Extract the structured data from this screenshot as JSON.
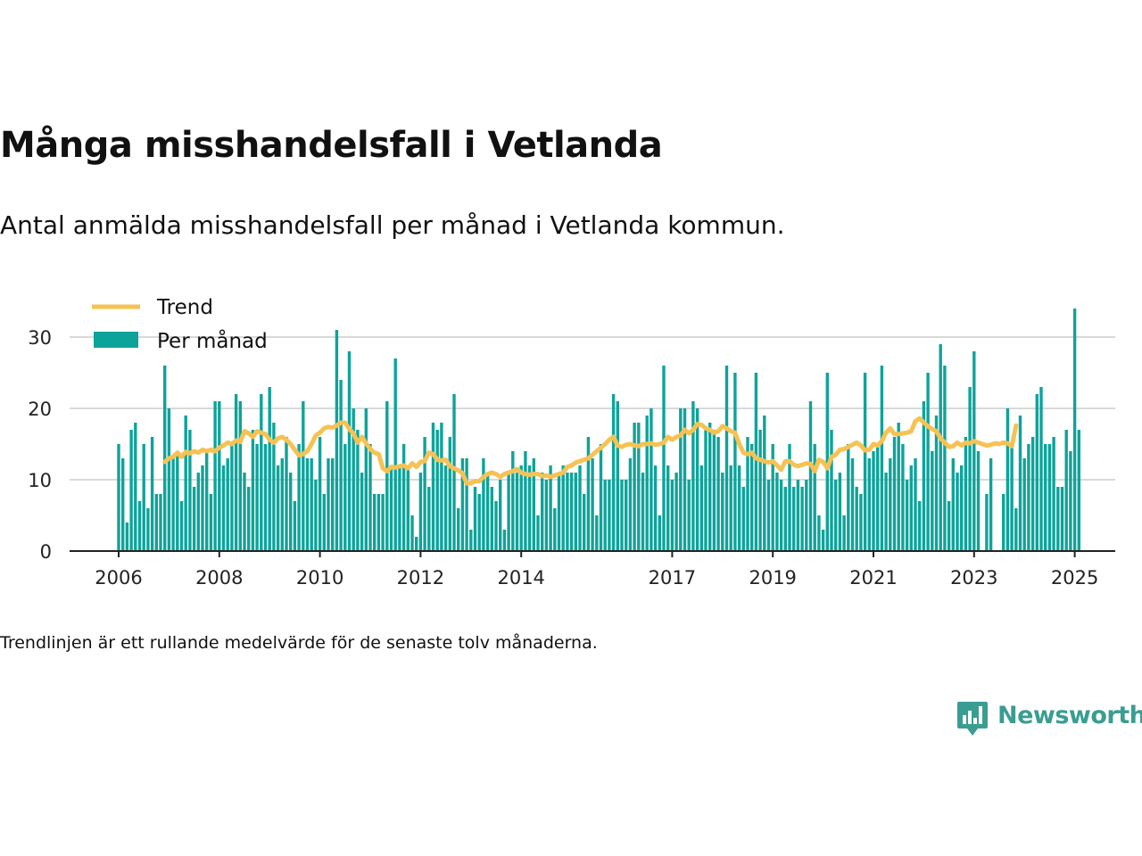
{
  "title": "Många misshandelsfall i Vetlanda",
  "subtitle": "Antal anmälda misshandelsfall per månad i Vetlanda kommun.",
  "footnote": "Trendlinjen är ett rullande medelvärde för de senaste tolv månaderna.",
  "logo": {
    "text": "Newsworthy",
    "icon": "newsworthy-chart-icon"
  },
  "colors": {
    "bars": "#0ea39a",
    "trend": "#f6c254",
    "grid": "#d9d9d9",
    "axis": "#222222"
  },
  "chart_data": {
    "type": "bar",
    "x_start": "2006-01",
    "x_end": "2025-06",
    "ylim": [
      0,
      35
    ],
    "yticks": [
      0,
      10,
      20,
      30
    ],
    "xticks": [
      "2006",
      "2008",
      "2010",
      "2012",
      "2014",
      "2017",
      "2019",
      "2021",
      "2023",
      "2025"
    ],
    "legend": {
      "placement": "top-left",
      "items": [
        "Trend",
        "Per månad"
      ]
    },
    "grid": true,
    "series": [
      {
        "name": "Per månad",
        "type": "bar",
        "values": [
          15,
          13,
          4,
          17,
          18,
          7,
          15,
          6,
          16,
          8,
          8,
          26,
          20,
          13,
          14,
          7,
          19,
          17,
          9,
          11,
          12,
          14,
          8,
          21,
          21,
          12,
          13,
          15,
          22,
          21,
          11,
          9,
          17,
          15,
          22,
          15,
          23,
          18,
          12,
          13,
          16,
          11,
          7,
          15,
          21,
          13,
          13,
          10,
          16,
          8,
          13,
          13,
          31,
          24,
          15,
          28,
          20,
          17,
          11,
          20,
          15,
          8,
          8,
          8,
          21,
          12,
          27,
          12,
          15,
          12,
          5,
          2,
          11,
          16,
          9,
          18,
          17,
          18,
          12,
          16,
          22,
          6,
          13,
          13,
          3,
          9,
          8,
          13,
          11,
          9,
          7,
          10,
          3,
          11,
          14,
          11,
          12,
          14,
          12,
          13,
          5,
          11,
          10,
          12,
          6,
          11,
          12,
          11,
          11,
          11,
          12,
          8,
          16,
          13,
          5,
          15,
          10,
          10,
          22,
          21,
          10,
          10,
          13,
          18,
          18,
          11,
          19,
          20,
          12,
          5,
          26,
          12,
          10,
          11,
          20,
          20,
          10,
          21,
          20,
          12,
          17,
          18,
          17,
          16,
          11,
          26,
          12,
          25,
          12,
          9,
          16,
          15,
          25,
          17,
          19,
          10,
          15,
          11,
          10,
          9,
          15,
          9,
          10,
          9,
          10,
          21,
          15,
          5,
          3,
          25,
          17,
          10,
          11,
          5,
          15,
          13,
          9,
          8,
          25,
          13,
          14,
          15,
          26,
          11,
          13,
          16,
          18,
          15,
          10,
          12,
          13,
          7,
          21,
          25,
          14,
          19,
          29,
          26,
          7,
          13,
          11,
          12,
          16,
          23,
          28,
          14,
          0,
          8,
          13,
          0,
          0,
          8,
          20,
          15,
          6,
          19,
          13,
          15,
          16,
          22,
          23,
          15,
          15,
          16,
          9,
          9,
          17,
          14,
          34,
          17
        ]
      },
      {
        "name": "Trend",
        "type": "line",
        "start": "2006-12",
        "values": [
          12.5,
          13,
          13.2,
          13.8,
          13.2,
          13.9,
          13.7,
          14,
          13.8,
          14.2,
          14,
          14.2,
          14,
          14.5,
          14.8,
          15.2,
          15,
          15.5,
          15.3,
          16.8,
          16.5,
          16,
          16.8,
          16.6,
          16.4,
          15.6,
          15.2,
          15.8,
          16,
          15.6,
          15,
          14.2,
          13.4,
          13.6,
          14,
          15,
          16.2,
          16.6,
          17.2,
          17.4,
          17.3,
          17.6,
          18,
          18,
          17.1,
          16.5,
          15.2,
          16,
          15.1,
          14.3,
          13.8,
          13.6,
          11.6,
          11.2,
          11.8,
          11.7,
          11.9,
          12,
          11.6,
          12.3,
          11.8,
          12.5,
          12.6,
          13.8,
          13.6,
          12.8,
          12.7,
          12.8,
          11.9,
          11.6,
          11.3,
          10.9,
          9.5,
          9.5,
          9.8,
          9.8,
          10.4,
          10.8,
          11,
          10.8,
          10.4,
          10.8,
          11,
          11.2,
          11.5,
          11,
          10.8,
          10.7,
          10.8,
          10.8,
          10.5,
          10.6,
          10.4,
          10.6,
          10.8,
          11,
          11.8,
          12,
          12.4,
          12.6,
          12.8,
          13,
          13.5,
          14,
          14.5,
          15,
          15.6,
          16,
          14.8,
          14.6,
          14.9,
          15,
          14.8,
          14.7,
          15,
          15,
          15.1,
          14.9,
          15,
          15.2,
          16,
          15.6,
          16,
          16.2,
          17,
          16.5,
          17,
          17.8,
          17.7,
          17.2,
          17,
          16.6,
          16.8,
          17.5,
          17.2,
          16.8,
          16.6,
          15,
          13.8,
          13.6,
          13.8,
          13,
          12.8,
          12.6,
          12.4,
          12.6,
          12,
          11.4,
          12.6,
          12.6,
          12.1,
          11.9,
          12.1,
          12.3,
          12.2,
          11.2,
          12.8,
          12.5,
          11.6,
          13.2,
          13.5,
          14.2,
          14.3,
          14.6,
          14.9,
          15.2,
          14.8,
          14.1,
          14.2,
          15,
          14.8,
          15.4,
          16.6,
          17.2,
          16.4,
          16.4,
          16.5,
          16.6,
          16.8,
          18.2,
          18.6,
          18,
          17.5,
          17.1,
          16.8,
          15.8,
          15.2,
          14.6,
          14.7,
          15.2,
          14.8,
          15.2,
          15.1,
          15.4,
          15.2,
          15,
          14.8,
          14.9,
          15.1,
          15,
          15.2,
          15.1,
          14.7,
          17.6
        ]
      }
    ]
  }
}
